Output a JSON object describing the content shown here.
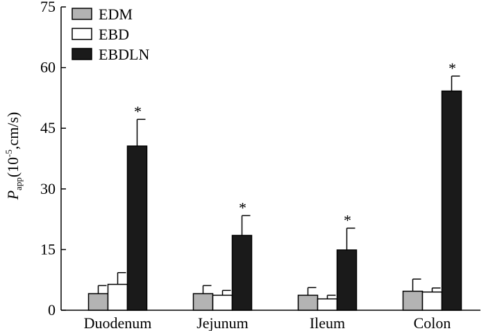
{
  "chart_data": {
    "type": "bar",
    "categories": [
      "Duodenum",
      "Jejunum",
      "Ileum",
      "Colon"
    ],
    "series": [
      {
        "name": "EDM",
        "values": [
          4.1,
          4.1,
          3.7,
          4.7
        ],
        "errors": [
          2.0,
          2.0,
          1.9,
          3.0
        ],
        "color": "#b3b3b3"
      },
      {
        "name": "EBD",
        "values": [
          6.4,
          3.7,
          2.8,
          4.5
        ],
        "errors": [
          2.9,
          1.2,
          0.9,
          1.0
        ],
        "color": "#ffffff"
      },
      {
        "name": "EBDLN",
        "values": [
          40.6,
          18.5,
          14.9,
          54.2
        ],
        "errors": [
          6.6,
          4.9,
          5.4,
          3.7
        ],
        "color": "#1a1a1a"
      }
    ],
    "significance": [
      {
        "series": "EBDLN",
        "category": "Duodenum",
        "mark": "*"
      },
      {
        "series": "EBDLN",
        "category": "Jejunum",
        "mark": "*"
      },
      {
        "series": "EBDLN",
        "category": "Ileum",
        "mark": "*"
      },
      {
        "series": "EBDLN",
        "category": "Colon",
        "mark": "*"
      }
    ],
    "ylabel": {
      "symbol": "P",
      "subscript": "app",
      "open": "(10",
      "superscript": "-5",
      "close": ",cm/s)"
    },
    "ylim": [
      0,
      75
    ],
    "yticks": [
      0,
      15,
      30,
      45,
      60,
      75
    ],
    "grid": false,
    "legend_position": "top-left"
  }
}
